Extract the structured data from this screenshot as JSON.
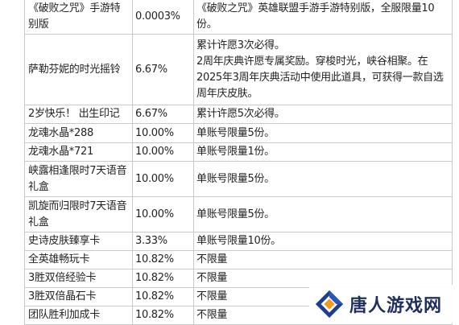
{
  "table": {
    "rows": [
      {
        "name": "《破败之咒》手游特别版",
        "rate": "0.0003%",
        "note": "《破败之咒》英雄联盟手游手游特别版，全服限量10份。"
      },
      {
        "name": "萨勒芬妮的时光摇铃",
        "rate": "6.67%",
        "note": "累计许愿3次必得。\n2周年庆典许愿专属奖励。穿梭时光，峡谷相聚。在2025年3周年庆典活动中使用此道具，可获得一款自选周年庆皮肤。"
      },
      {
        "name": "2岁快乐！ 出生印记",
        "rate": "6.67%",
        "note": "累计许愿5次必得。"
      },
      {
        "name": "龙魂水晶*288",
        "rate": "10.00%",
        "note": "单账号限量5份。"
      },
      {
        "name": "龙魂水晶*721",
        "rate": "10.00%",
        "note": "单账号限量1份。"
      },
      {
        "name": "峡露相逢限时7天语音礼盒",
        "rate": "10.00%",
        "note": "单账号限量5份。"
      },
      {
        "name": "凯旋而归限时7天语音礼盒",
        "rate": "10.00%",
        "note": "单账号限量5份。"
      },
      {
        "name": "史诗皮肤臻享卡",
        "rate": "3.33%",
        "note": "单账号限量10份。"
      },
      {
        "name": "全英雄畅玩卡",
        "rate": "10.82%",
        "note": "不限量"
      },
      {
        "name": "3胜双倍经验卡",
        "rate": "10.82%",
        "note": "不限量"
      },
      {
        "name": "3胜双倍晶石卡",
        "rate": "10.82%",
        "note": "不限量"
      },
      {
        "name": "团队胜利加成卡",
        "rate": "10.82%",
        "note": "不限量"
      }
    ]
  },
  "watermark": {
    "site_name": "唐人游戏网",
    "logo_icon": "tangren-logo-icon",
    "colors": {
      "blue": "#1e3f8f",
      "orange": "#f39a1e",
      "text": "#1e2f5e"
    }
  }
}
